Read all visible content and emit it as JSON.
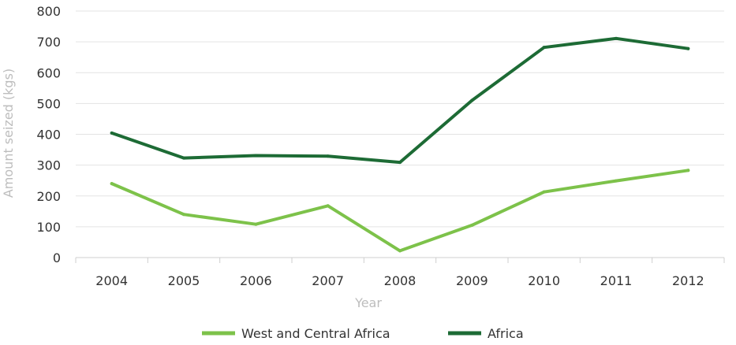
{
  "chart_data": {
    "type": "line",
    "title": "",
    "xlabel": "Year",
    "ylabel": "Amount seized (kgs)",
    "categories": [
      "2004",
      "2005",
      "2006",
      "2007",
      "2008",
      "2009",
      "2010",
      "2011",
      "2012"
    ],
    "ylim": [
      0,
      800
    ],
    "yticks": [
      0,
      100,
      200,
      300,
      400,
      500,
      600,
      700,
      800
    ],
    "grid": "horizontal",
    "legend": "bottom",
    "series": [
      {
        "name": "West and Central Africa",
        "color": "#7dc24a",
        "values": [
          240,
          140,
          108,
          168,
          22,
          105,
          213,
          249,
          283
        ]
      },
      {
        "name": "Africa",
        "color": "#1d6b35",
        "values": [
          404,
          323,
          331,
          329,
          309,
          510,
          682,
          711,
          678
        ]
      }
    ]
  }
}
